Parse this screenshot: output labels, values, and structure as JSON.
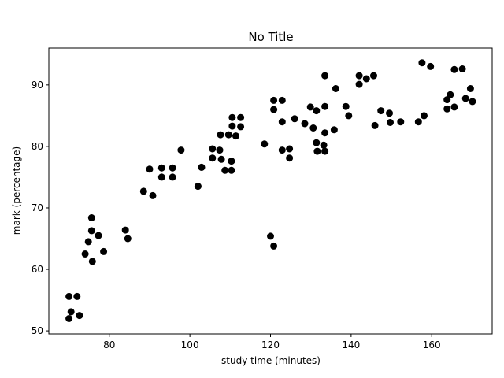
{
  "chart_data": {
    "type": "scatter",
    "title": "No Title",
    "xlabel": "study time (minutes)",
    "ylabel": "mark (percentage)",
    "xlim": [
      65,
      175
    ],
    "ylim": [
      49.5,
      96
    ],
    "xticks": [
      80,
      100,
      120,
      140,
      160
    ],
    "yticks": [
      50,
      60,
      70,
      80,
      90
    ],
    "grid": false,
    "marker_color": "#000000",
    "points": [
      {
        "x": 70,
        "y": 52
      },
      {
        "x": 70,
        "y": 55.6
      },
      {
        "x": 70.5,
        "y": 53.1
      },
      {
        "x": 72,
        "y": 55.6
      },
      {
        "x": 72.6,
        "y": 52.5
      },
      {
        "x": 74,
        "y": 62.5
      },
      {
        "x": 74.8,
        "y": 64.5
      },
      {
        "x": 75.6,
        "y": 68.4
      },
      {
        "x": 75.6,
        "y": 66.3
      },
      {
        "x": 75.8,
        "y": 61.3
      },
      {
        "x": 77.3,
        "y": 65.5
      },
      {
        "x": 78.6,
        "y": 62.9
      },
      {
        "x": 84,
        "y": 66.4
      },
      {
        "x": 84.6,
        "y": 65
      },
      {
        "x": 88.5,
        "y": 72.7
      },
      {
        "x": 90,
        "y": 76.3
      },
      {
        "x": 90.8,
        "y": 72
      },
      {
        "x": 93,
        "y": 76.5
      },
      {
        "x": 93,
        "y": 75
      },
      {
        "x": 95.7,
        "y": 76.5
      },
      {
        "x": 95.7,
        "y": 75
      },
      {
        "x": 97.8,
        "y": 79.4
      },
      {
        "x": 102,
        "y": 73.5
      },
      {
        "x": 102.9,
        "y": 76.6
      },
      {
        "x": 105.6,
        "y": 79.6
      },
      {
        "x": 105.6,
        "y": 78.1
      },
      {
        "x": 107.4,
        "y": 79.4
      },
      {
        "x": 107.6,
        "y": 81.9
      },
      {
        "x": 107.8,
        "y": 77.9
      },
      {
        "x": 108.7,
        "y": 76.1
      },
      {
        "x": 109.6,
        "y": 81.9
      },
      {
        "x": 110.3,
        "y": 76.1
      },
      {
        "x": 110.3,
        "y": 77.6
      },
      {
        "x": 110.5,
        "y": 84.7
      },
      {
        "x": 110.5,
        "y": 83.3
      },
      {
        "x": 111.4,
        "y": 81.7
      },
      {
        "x": 112.6,
        "y": 84.7
      },
      {
        "x": 112.6,
        "y": 83.2
      },
      {
        "x": 118.5,
        "y": 80.4
      },
      {
        "x": 120,
        "y": 65.4
      },
      {
        "x": 120.8,
        "y": 63.8
      },
      {
        "x": 120.8,
        "y": 87.5
      },
      {
        "x": 120.8,
        "y": 86
      },
      {
        "x": 122.9,
        "y": 87.5
      },
      {
        "x": 122.9,
        "y": 84
      },
      {
        "x": 122.9,
        "y": 79.4
      },
      {
        "x": 124.7,
        "y": 79.6
      },
      {
        "x": 124.7,
        "y": 78.1
      },
      {
        "x": 126,
        "y": 84.5
      },
      {
        "x": 128.5,
        "y": 83.7
      },
      {
        "x": 129.9,
        "y": 86.4
      },
      {
        "x": 130.6,
        "y": 83
      },
      {
        "x": 131.4,
        "y": 85.8
      },
      {
        "x": 131.4,
        "y": 80.6
      },
      {
        "x": 131.6,
        "y": 79.2
      },
      {
        "x": 133.2,
        "y": 80.2
      },
      {
        "x": 133.5,
        "y": 91.5
      },
      {
        "x": 133.5,
        "y": 86.5
      },
      {
        "x": 133.5,
        "y": 82.2
      },
      {
        "x": 133.5,
        "y": 79.2
      },
      {
        "x": 135.8,
        "y": 82.7
      },
      {
        "x": 136.2,
        "y": 89.4
      },
      {
        "x": 138.7,
        "y": 86.5
      },
      {
        "x": 139.4,
        "y": 85
      },
      {
        "x": 142,
        "y": 91.5
      },
      {
        "x": 142,
        "y": 90.1
      },
      {
        "x": 143.8,
        "y": 91
      },
      {
        "x": 145.6,
        "y": 91.5
      },
      {
        "x": 145.9,
        "y": 83.4
      },
      {
        "x": 147.4,
        "y": 85.8
      },
      {
        "x": 149.5,
        "y": 85.4
      },
      {
        "x": 149.7,
        "y": 83.9
      },
      {
        "x": 152.3,
        "y": 84
      },
      {
        "x": 156.7,
        "y": 84
      },
      {
        "x": 157.6,
        "y": 93.6
      },
      {
        "x": 158.1,
        "y": 85
      },
      {
        "x": 159.7,
        "y": 93
      },
      {
        "x": 163.8,
        "y": 87.6
      },
      {
        "x": 163.8,
        "y": 86.1
      },
      {
        "x": 164.6,
        "y": 88.4
      },
      {
        "x": 165.6,
        "y": 92.5
      },
      {
        "x": 165.6,
        "y": 86.4
      },
      {
        "x": 167.6,
        "y": 92.6
      },
      {
        "x": 168.4,
        "y": 87.8
      },
      {
        "x": 169.6,
        "y": 89.4
      },
      {
        "x": 170.1,
        "y": 87.3
      }
    ]
  }
}
